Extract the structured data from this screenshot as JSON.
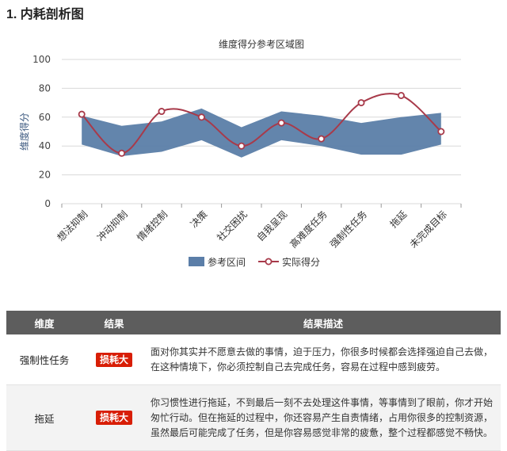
{
  "section_title": "1. 内耗剖析图",
  "chart_data": {
    "type": "area",
    "title": "维度得分参考区域图",
    "xlabel": "",
    "ylabel": "维度得分",
    "ylim": [
      0,
      100
    ],
    "yticks": [
      0,
      20,
      40,
      60,
      80,
      100
    ],
    "grid": true,
    "legend_position": "bottom",
    "categories": [
      "想法抑制",
      "冲动抑制",
      "情绪控制",
      "决策",
      "社交困扰",
      "自我呈现",
      "高难度任务",
      "强制性任务",
      "拖延",
      "未完成目标"
    ],
    "series": [
      {
        "name": "参考区间",
        "kind": "range",
        "color": "#5b7ea8",
        "low": [
          41,
          33,
          36,
          44,
          32,
          44,
          40,
          34,
          34,
          41
        ],
        "high": [
          61,
          54,
          57,
          66,
          53,
          64,
          61,
          56,
          60,
          63
        ]
      },
      {
        "name": "实际得分",
        "kind": "line",
        "color": "#a83a4a",
        "values": [
          62,
          35,
          64,
          60,
          40,
          56,
          45,
          70,
          75,
          50
        ]
      }
    ]
  },
  "table": {
    "headers": [
      "维度",
      "结果",
      "结果描述"
    ],
    "rows": [
      {
        "dimension": "强制性任务",
        "result": "损耗大",
        "description": "面对你其实并不愿意去做的事情，迫于压力，你很多时候都会选择强迫自己去做，在这种情境下，你必须控制自己去完成任务，容易在过程中感到疲劳。"
      },
      {
        "dimension": "拖延",
        "result": "损耗大",
        "description": "你习惯性进行拖延，不到最后一刻不去处理这件事情，等事情到了眼前，你才开始匆忙行动。但在拖延的过程中，你还容易产生自责情绪，占用你很多的控制资源，虽然最后可能完成了任务，但是你容易感觉非常的疲惫，整个过程都感觉不畅快。"
      }
    ],
    "badge_color": "#d81e06"
  }
}
